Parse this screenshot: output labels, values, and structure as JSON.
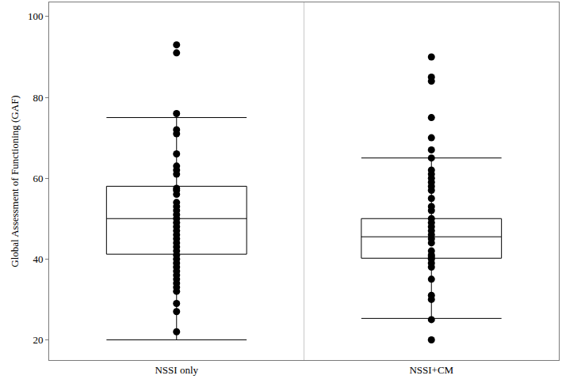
{
  "chart_data": {
    "type": "box",
    "y_label": "Global Assessment of Functioning (GAF)",
    "categories": [
      "NSSI only",
      "NSSI+CM"
    ],
    "boxes": [
      {
        "category": "NSSI only",
        "q1": 41.2,
        "median": 50,
        "q3": 58,
        "lowerfence": 20,
        "upperfence": 75,
        "points": [
          93,
          91,
          76,
          72,
          71,
          66,
          63,
          62,
          61,
          57.5,
          57,
          56,
          54,
          53,
          52,
          51,
          50,
          49,
          48,
          47,
          46,
          45,
          44,
          43,
          42,
          41,
          40,
          39,
          38,
          37,
          36,
          35,
          34,
          33,
          32,
          29,
          27,
          22
        ]
      },
      {
        "category": "NSSI+CM",
        "q1": 40.2,
        "median": 45.5,
        "q3": 50,
        "lowerfence": 25.3,
        "upperfence": 65,
        "points": [
          90,
          85,
          84,
          75,
          70,
          67,
          65,
          62,
          61,
          60,
          59,
          58,
          57,
          55,
          53,
          52,
          50,
          49,
          48,
          47,
          46,
          45,
          44,
          42,
          41,
          40.5,
          40,
          39,
          38,
          35,
          31,
          30,
          25,
          20
        ]
      }
    ],
    "color": "#000000",
    "marker": "circle",
    "ylim": [
      15,
      103.5
    ],
    "yticks": [
      20,
      40,
      60,
      80,
      100
    ],
    "grid": false
  }
}
